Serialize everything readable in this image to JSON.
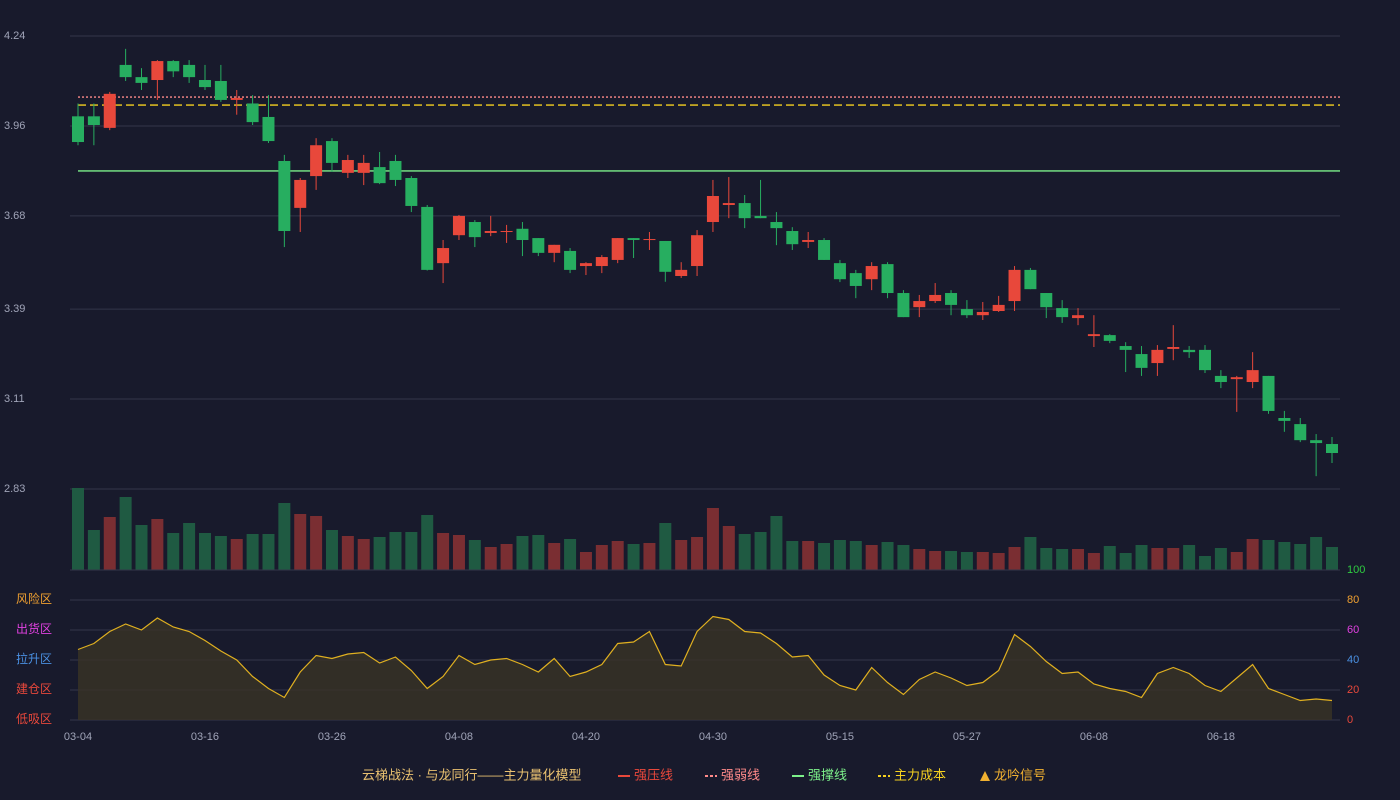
{
  "chart_data": [
    {
      "type": "candlestick",
      "categories": [
        "03-04",
        null,
        null,
        null,
        null,
        null,
        null,
        null,
        "03-16",
        null,
        null,
        null,
        null,
        null,
        null,
        null,
        "03-26",
        null,
        null,
        null,
        null,
        null,
        null,
        null,
        "04-08",
        null,
        null,
        null,
        null,
        null,
        null,
        null,
        "04-20",
        null,
        null,
        null,
        null,
        null,
        null,
        null,
        "04-30",
        null,
        null,
        null,
        null,
        null,
        null,
        null,
        "05-15",
        null,
        null,
        null,
        null,
        null,
        null,
        null,
        "05-27",
        null,
        null,
        null,
        null,
        null,
        null,
        null,
        "06-08",
        null,
        null,
        null,
        null,
        null,
        null,
        null,
        "06-18",
        null,
        null,
        null,
        null,
        null,
        null,
        null
      ],
      "open": [
        3.99,
        3.99,
        3.954,
        4.15,
        4.112,
        4.103,
        4.162,
        4.15,
        4.103,
        4.1,
        4.041,
        4.03,
        3.988,
        3.851,
        3.705,
        3.804,
        3.913,
        3.814,
        3.814,
        3.832,
        3.851,
        3.798,
        3.708,
        3.533,
        3.62,
        3.661,
        3.627,
        3.63,
        3.64,
        3.611,
        3.565,
        3.571,
        3.524,
        3.524,
        3.543,
        3.611,
        3.605,
        3.602,
        3.493,
        3.524,
        3.661,
        3.714,
        3.72,
        3.68,
        3.661,
        3.633,
        3.599,
        3.605,
        3.533,
        3.502,
        3.483,
        3.53,
        3.44,
        3.396,
        3.415,
        3.44,
        3.39,
        3.371,
        3.384,
        3.415,
        3.512,
        3.44,
        3.393,
        3.362,
        3.306,
        3.309,
        3.275,
        3.25,
        3.222,
        3.266,
        3.263,
        3.263,
        3.182,
        3.172,
        3.163,
        3.182,
        3.051,
        3.032,
        2.982,
        2.97
      ],
      "high": [
        4.03,
        4.03,
        4.066,
        4.2,
        4.14,
        4.165,
        4.165,
        4.165,
        4.15,
        4.15,
        4.072,
        4.056,
        4.056,
        3.87,
        3.798,
        3.922,
        3.922,
        3.87,
        3.87,
        3.879,
        3.87,
        3.804,
        3.714,
        3.605,
        3.683,
        3.667,
        3.68,
        3.652,
        3.661,
        3.611,
        3.59,
        3.58,
        3.536,
        3.558,
        3.611,
        3.611,
        3.63,
        3.602,
        3.536,
        3.636,
        3.792,
        3.801,
        3.745,
        3.792,
        3.692,
        3.645,
        3.63,
        3.611,
        3.543,
        3.512,
        3.536,
        3.536,
        3.449,
        3.434,
        3.471,
        3.449,
        3.418,
        3.412,
        3.431,
        3.524,
        3.518,
        3.44,
        3.418,
        3.393,
        3.371,
        3.312,
        3.287,
        3.275,
        3.278,
        3.34,
        3.275,
        3.278,
        3.2,
        3.182,
        3.256,
        3.182,
        3.073,
        3.051,
        3.001,
        2.992
      ],
      "low": [
        3.9,
        3.9,
        3.947,
        4.1,
        4.072,
        4.041,
        4.112,
        4.094,
        4.072,
        4.035,
        3.995,
        3.963,
        3.907,
        3.583,
        3.63,
        3.761,
        3.817,
        3.798,
        3.776,
        3.779,
        3.773,
        3.692,
        3.51,
        3.471,
        3.605,
        3.583,
        3.617,
        3.596,
        3.555,
        3.555,
        3.536,
        3.502,
        3.496,
        3.502,
        3.533,
        3.549,
        3.574,
        3.475,
        3.487,
        3.493,
        3.63,
        3.673,
        3.642,
        3.673,
        3.589,
        3.574,
        3.58,
        3.543,
        3.474,
        3.424,
        3.449,
        3.424,
        3.365,
        3.365,
        3.409,
        3.371,
        3.362,
        3.356,
        3.381,
        3.384,
        3.452,
        3.362,
        3.347,
        3.34,
        3.272,
        3.284,
        3.194,
        3.182,
        3.182,
        3.231,
        3.238,
        3.191,
        3.144,
        3.07,
        3.144,
        3.064,
        3.008,
        2.976,
        2.87,
        2.911
      ],
      "close": [
        3.91,
        3.963,
        4.06,
        4.112,
        4.094,
        4.162,
        4.13,
        4.112,
        4.081,
        4.041,
        4.047,
        3.972,
        3.913,
        3.633,
        3.792,
        3.9,
        3.845,
        3.854,
        3.845,
        3.782,
        3.792,
        3.711,
        3.512,
        3.58,
        3.68,
        3.614,
        3.633,
        3.633,
        3.605,
        3.565,
        3.59,
        3.512,
        3.533,
        3.552,
        3.611,
        3.605,
        3.608,
        3.506,
        3.512,
        3.62,
        3.742,
        3.72,
        3.673,
        3.673,
        3.642,
        3.592,
        3.605,
        3.543,
        3.483,
        3.462,
        3.524,
        3.44,
        3.365,
        3.415,
        3.434,
        3.403,
        3.371,
        3.381,
        3.403,
        3.512,
        3.452,
        3.396,
        3.365,
        3.371,
        3.312,
        3.291,
        3.263,
        3.207,
        3.263,
        3.272,
        3.256,
        3.2,
        3.163,
        3.178,
        3.2,
        3.073,
        3.042,
        2.982,
        2.973,
        2.942
      ],
      "up_color": "#e8483b",
      "down_color": "#27ae60",
      "ylim": [
        2.83,
        4.24
      ],
      "yticks": [
        2.83,
        3.11,
        3.39,
        3.68,
        3.96,
        4.24
      ],
      "levels": [
        {
          "value": 4.05,
          "color": "#ff8a8a",
          "style": "dotted"
        },
        {
          "value": 4.025,
          "color": "#f5d020",
          "style": "dashed"
        },
        {
          "value": 3.82,
          "color": "#7cf08a",
          "style": "solid"
        }
      ],
      "legend_title": "云梯战法 · 与龙同行——主力量化模型",
      "legend": [
        {
          "name": "强压线",
          "color": "#e8483b",
          "style": "solid"
        },
        {
          "name": "强弱线",
          "color": "#ff8a8a",
          "style": "dotted"
        },
        {
          "name": "强撑线",
          "color": "#7cf08a",
          "style": "solid"
        },
        {
          "name": "主力成本",
          "color": "#f5d020",
          "style": "dashed"
        },
        {
          "name": "龙吟信号",
          "color": "#f0b030",
          "style": "triangle"
        }
      ]
    },
    {
      "type": "bar",
      "up_color": "#7a2e32",
      "down_color": "#1f5a42",
      "values": [
        82,
        40,
        53,
        73,
        45,
        51,
        37,
        47,
        37,
        34,
        31,
        36,
        36,
        67,
        56,
        54,
        40,
        34,
        31,
        33,
        38,
        38,
        55,
        37,
        35,
        30,
        23,
        26,
        34,
        35,
        27,
        31,
        18,
        25,
        29,
        26,
        27,
        47,
        30,
        33,
        62,
        44,
        36,
        38,
        54,
        29,
        29,
        27,
        30,
        29,
        25,
        28,
        25,
        21,
        19,
        19,
        18,
        18,
        17,
        23,
        33,
        22,
        21,
        21,
        17,
        24,
        17,
        25,
        22,
        22,
        25,
        14,
        22,
        18,
        31,
        30,
        28,
        26,
        33,
        23
      ]
    },
    {
      "type": "line",
      "color": "#e0b020",
      "fill": "#3a3326",
      "values": [
        47,
        51,
        59,
        64,
        60,
        68,
        62,
        59,
        53,
        46,
        40,
        29,
        21,
        15,
        32,
        43,
        41,
        44,
        45,
        38,
        42,
        33,
        21,
        29,
        43,
        37,
        40,
        41,
        37,
        32,
        41,
        29,
        32,
        37,
        51,
        52,
        59,
        37,
        36,
        59,
        69,
        67,
        59,
        58,
        51,
        42,
        43,
        30,
        23,
        20,
        35,
        25,
        17,
        27,
        32,
        28,
        23,
        25,
        33,
        57,
        49,
        39,
        31,
        32,
        24,
        21,
        19,
        15,
        31,
        35,
        31,
        23,
        19,
        28,
        37,
        21,
        17,
        13,
        14,
        13
      ],
      "ylim": [
        0,
        100
      ],
      "yticks": [
        0,
        20,
        40,
        60,
        80,
        100
      ],
      "ytick_colors": [
        "#e8483b",
        "#e8483b",
        "#4a90e2",
        "#e040e0",
        "#f0a030",
        "#2ecc40"
      ],
      "zones": [
        {
          "name": "低吸区",
          "color": "#e8483b"
        },
        {
          "name": "建仓区",
          "color": "#e8483b"
        },
        {
          "name": "拉升区",
          "color": "#4a90e2"
        },
        {
          "name": "出货区",
          "color": "#e040e0"
        },
        {
          "name": "风险区",
          "color": "#f0a030"
        }
      ]
    }
  ]
}
